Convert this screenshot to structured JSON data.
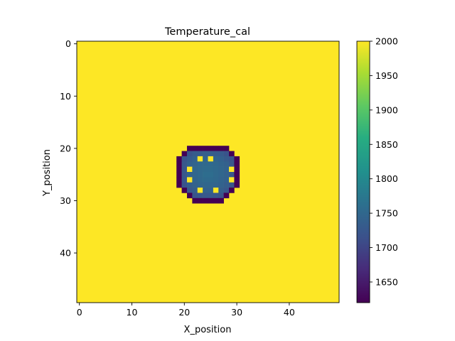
{
  "chart_data": {
    "type": "heatmap",
    "title": "Temperature_cal",
    "xlabel": "X_position",
    "ylabel": "Y_position",
    "grid_size": [
      50,
      50
    ],
    "x_range": [
      -0.5,
      49.5
    ],
    "y_range": [
      49.5,
      -0.5
    ],
    "x_ticks": [
      0,
      10,
      20,
      30,
      40
    ],
    "y_ticks": [
      0,
      10,
      20,
      30,
      40
    ],
    "background_value": 2000,
    "colormap": "viridis",
    "colorbar": {
      "vmin": 1620,
      "vmax": 2000,
      "ticks": [
        1650,
        1700,
        1750,
        1800,
        1850,
        1900,
        1950,
        2000
      ]
    },
    "cells": [
      {
        "row": 20,
        "cols": [
          [
            21,
            22,
            1620
          ],
          [
            23,
            23,
            1620
          ],
          [
            24,
            24,
            1620
          ],
          [
            25,
            25,
            1620
          ],
          [
            26,
            26,
            1620
          ],
          [
            27,
            27,
            1620
          ],
          [
            28,
            28,
            1620
          ]
        ]
      },
      {
        "row": 21,
        "cols": [
          [
            20,
            20,
            1620
          ],
          [
            21,
            21,
            1720
          ],
          [
            22,
            22,
            1730
          ],
          [
            23,
            23,
            1730
          ],
          [
            24,
            24,
            1735
          ],
          [
            25,
            25,
            1735
          ],
          [
            26,
            26,
            1730
          ],
          [
            27,
            27,
            1730
          ],
          [
            28,
            28,
            1720
          ],
          [
            29,
            29,
            1620
          ]
        ]
      },
      {
        "row": 22,
        "cols": [
          [
            19,
            19,
            1620
          ],
          [
            20,
            20,
            1720
          ],
          [
            21,
            21,
            1730
          ],
          [
            22,
            22,
            1740
          ],
          [
            23,
            23,
            2000
          ],
          [
            24,
            24,
            1745
          ],
          [
            25,
            25,
            2000
          ],
          [
            26,
            26,
            1745
          ],
          [
            27,
            27,
            1740
          ],
          [
            28,
            28,
            1730
          ],
          [
            29,
            29,
            1720
          ],
          [
            30,
            30,
            1620
          ]
        ]
      },
      {
        "row": 23,
        "cols": [
          [
            19,
            19,
            1620
          ],
          [
            20,
            20,
            1725
          ],
          [
            21,
            21,
            1740
          ],
          [
            22,
            22,
            1745
          ],
          [
            23,
            23,
            1750
          ],
          [
            24,
            24,
            1752
          ],
          [
            25,
            25,
            1752
          ],
          [
            26,
            26,
            1750
          ],
          [
            27,
            27,
            1745
          ],
          [
            28,
            28,
            1740
          ],
          [
            29,
            29,
            1725
          ],
          [
            30,
            30,
            1620
          ]
        ]
      },
      {
        "row": 24,
        "cols": [
          [
            19,
            19,
            1620
          ],
          [
            20,
            20,
            1725
          ],
          [
            21,
            21,
            2000
          ],
          [
            22,
            22,
            1748
          ],
          [
            23,
            23,
            1752
          ],
          [
            24,
            24,
            1755
          ],
          [
            25,
            25,
            1755
          ],
          [
            26,
            26,
            1752
          ],
          [
            27,
            27,
            1748
          ],
          [
            28,
            28,
            1742
          ],
          [
            29,
            29,
            2000
          ],
          [
            30,
            30,
            1620
          ]
        ]
      },
      {
        "row": 25,
        "cols": [
          [
            19,
            19,
            1620
          ],
          [
            20,
            20,
            1725
          ],
          [
            21,
            21,
            1742
          ],
          [
            22,
            22,
            1748
          ],
          [
            23,
            23,
            1752
          ],
          [
            24,
            24,
            1758
          ],
          [
            25,
            25,
            1758
          ],
          [
            26,
            26,
            1752
          ],
          [
            27,
            27,
            1748
          ],
          [
            28,
            28,
            1742
          ],
          [
            29,
            29,
            1725
          ],
          [
            30,
            30,
            1620
          ]
        ]
      },
      {
        "row": 26,
        "cols": [
          [
            19,
            19,
            1620
          ],
          [
            20,
            20,
            1725
          ],
          [
            21,
            21,
            2000
          ],
          [
            22,
            22,
            1745
          ],
          [
            23,
            23,
            1750
          ],
          [
            24,
            24,
            1754
          ],
          [
            25,
            25,
            1754
          ],
          [
            26,
            26,
            1750
          ],
          [
            27,
            27,
            1745
          ],
          [
            28,
            28,
            1740
          ],
          [
            29,
            29,
            2000
          ],
          [
            30,
            30,
            1620
          ]
        ]
      },
      {
        "row": 27,
        "cols": [
          [
            19,
            19,
            1620
          ],
          [
            20,
            20,
            1720
          ],
          [
            21,
            21,
            1735
          ],
          [
            22,
            22,
            1742
          ],
          [
            23,
            23,
            1746
          ],
          [
            24,
            24,
            1748
          ],
          [
            25,
            25,
            1748
          ],
          [
            26,
            26,
            1746
          ],
          [
            27,
            27,
            1742
          ],
          [
            28,
            28,
            1735
          ],
          [
            29,
            29,
            1720
          ],
          [
            30,
            30,
            1620
          ]
        ]
      },
      {
        "row": 28,
        "cols": [
          [
            20,
            20,
            1620
          ],
          [
            21,
            21,
            1725
          ],
          [
            22,
            22,
            1735
          ],
          [
            23,
            23,
            2000
          ],
          [
            24,
            24,
            1742
          ],
          [
            25,
            25,
            1742
          ],
          [
            26,
            26,
            2000
          ],
          [
            27,
            27,
            1735
          ],
          [
            28,
            28,
            1725
          ],
          [
            29,
            29,
            1620
          ]
        ]
      },
      {
        "row": 29,
        "cols": [
          [
            21,
            21,
            1620
          ],
          [
            22,
            22,
            1720
          ],
          [
            23,
            23,
            1725
          ],
          [
            24,
            24,
            1728
          ],
          [
            25,
            25,
            1728
          ],
          [
            26,
            26,
            1725
          ],
          [
            27,
            27,
            1720
          ],
          [
            28,
            28,
            1620
          ]
        ]
      },
      {
        "row": 30,
        "cols": [
          [
            22,
            22,
            1620
          ],
          [
            23,
            23,
            1620
          ],
          [
            24,
            24,
            1620
          ],
          [
            25,
            25,
            1620
          ],
          [
            26,
            26,
            1620
          ],
          [
            27,
            27,
            1620
          ]
        ]
      }
    ]
  }
}
